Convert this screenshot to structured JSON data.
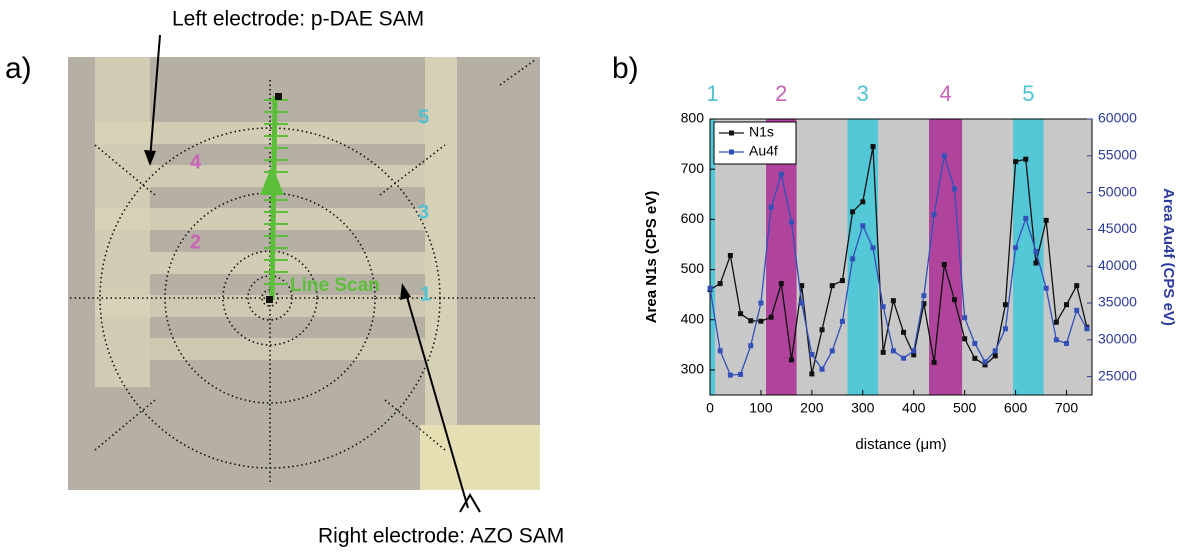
{
  "panel_a": {
    "label": "a)",
    "top_callout": "Left  electrode: p-DAE SAM",
    "bottom_callout": "Right  electrode: AZO SAM",
    "scan_label": "Line Scan",
    "markers": [
      {
        "text": "1",
        "color": "#4fc3d3"
      },
      {
        "text": "2",
        "color": "#c863b8"
      },
      {
        "text": "3",
        "color": "#4fc3d3"
      },
      {
        "text": "4",
        "color": "#c863b8"
      },
      {
        "text": "5",
        "color": "#4fc3d3"
      }
    ]
  },
  "chart_data": {
    "type": "line",
    "panel_label": "b)",
    "xlabel": "distance (μm)",
    "ylabel": "Area N1s (CPS eV)",
    "y2label": "Area Au4f (CPS eV)",
    "xlim": [
      0,
      750
    ],
    "xticks": [
      0,
      100,
      200,
      300,
      400,
      500,
      600,
      700
    ],
    "ylim": [
      250,
      800
    ],
    "yticks": [
      300,
      400,
      500,
      600,
      700,
      800
    ],
    "y2lim": [
      22500,
      60000
    ],
    "y2ticks": [
      25000,
      30000,
      35000,
      40000,
      45000,
      50000,
      55000,
      60000
    ],
    "legend": "top-left",
    "bands": [
      {
        "label": "1",
        "start": 0,
        "end": 10,
        "color": "#55c8d8",
        "label_color": "#4fc3d3"
      },
      {
        "label": "2",
        "start": 110,
        "end": 170,
        "color": "#b0449c",
        "label_color": "#c863b8"
      },
      {
        "label": "3",
        "start": 270,
        "end": 330,
        "color": "#55c8d8",
        "label_color": "#4fc3d3"
      },
      {
        "label": "4",
        "start": 430,
        "end": 495,
        "color": "#b0449c",
        "label_color": "#c863b8"
      },
      {
        "label": "5",
        "start": 595,
        "end": 655,
        "color": "#55c8d8",
        "label_color": "#4fc3d3"
      }
    ],
    "x": [
      0,
      20,
      40,
      60,
      80,
      100,
      120,
      140,
      160,
      180,
      200,
      220,
      240,
      260,
      280,
      300,
      320,
      340,
      360,
      380,
      400,
      420,
      440,
      460,
      480,
      500,
      520,
      540,
      560,
      580,
      600,
      620,
      640,
      660,
      680,
      700,
      720,
      740
    ],
    "series": [
      {
        "name": "N1s",
        "color": "#111111",
        "values": [
          460,
          472,
          528,
          412,
          398,
          397,
          405,
          472,
          320,
          468,
          292,
          380,
          468,
          478,
          615,
          635,
          745,
          335,
          438,
          375,
          330,
          432,
          315,
          510,
          440,
          362,
          323,
          310,
          328,
          430,
          715,
          720,
          513,
          598,
          395,
          430,
          468,
          385
        ]
      },
      {
        "name": "Au4f",
        "color": "#3350b8",
        "axis": "y2",
        "values": [
          37000,
          28500,
          25200,
          25300,
          29200,
          35000,
          48000,
          52500,
          46000,
          35000,
          28000,
          26000,
          28500,
          32500,
          41000,
          45500,
          42500,
          34500,
          28500,
          27500,
          28500,
          36000,
          47000,
          55000,
          50500,
          33000,
          29500,
          27000,
          28500,
          31500,
          42500,
          46500,
          42000,
          37000,
          30000,
          29500,
          34000,
          31500
        ]
      }
    ]
  }
}
